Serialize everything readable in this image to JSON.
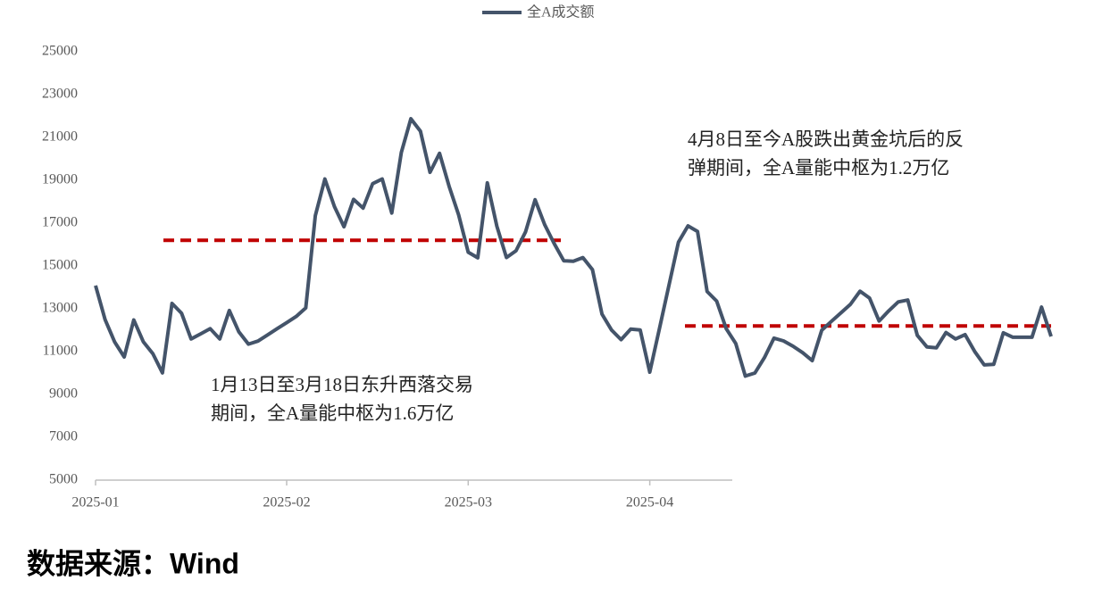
{
  "chart_data": {
    "type": "line",
    "categories": [
      "2025-01",
      null,
      null,
      null,
      null,
      null,
      null,
      null,
      null,
      null,
      null,
      null,
      null,
      null,
      null,
      null,
      null,
      null,
      null,
      null,
      "2025-02",
      null,
      null,
      null,
      null,
      null,
      null,
      null,
      null,
      null,
      null,
      null,
      null,
      null,
      null,
      null,
      null,
      null,
      null,
      "2025-03",
      null,
      null,
      null,
      null,
      null,
      null,
      null,
      null,
      null,
      null,
      null,
      null,
      null,
      null,
      null,
      null,
      null,
      null,
      "2025-04",
      null,
      null,
      null,
      null,
      null,
      null,
      null,
      null,
      null,
      null,
      null,
      null,
      null,
      null,
      null,
      null,
      null,
      null,
      null,
      null,
      null,
      null,
      null,
      null,
      null,
      null,
      null,
      null,
      null,
      null,
      null,
      null,
      null,
      null,
      null,
      null,
      null,
      null,
      null,
      null,
      null,
      null
    ],
    "series": [
      {
        "name": "全A成交额",
        "color": "#44546a",
        "values": [
          14083,
          12490,
          11450,
          10750,
          12480,
          11460,
          10900,
          10010,
          13250,
          12790,
          11590,
          11830,
          12070,
          11590,
          12920,
          11920,
          11350,
          11490,
          11780,
          12070,
          12350,
          12640,
          13040,
          17350,
          19060,
          17770,
          16830,
          18110,
          17700,
          18840,
          19060,
          17470,
          20300,
          21870,
          21290,
          19370,
          20260,
          18720,
          17380,
          15640,
          15380,
          18880,
          16850,
          15390,
          15710,
          16590,
          18090,
          16930,
          16040,
          15240,
          15220,
          15390,
          14830,
          12750,
          12010,
          11560,
          12050,
          12010,
          10040,
          12050,
          14080,
          16110,
          16870,
          16610,
          13810,
          13360,
          12070,
          11380,
          9860,
          10000,
          10720,
          11630,
          11500,
          11250,
          10950,
          10580,
          12000,
          12410,
          12810,
          13210,
          13820,
          13500,
          12430,
          12900,
          13320,
          13410,
          11760,
          11220,
          11180,
          11890,
          11590,
          11790,
          11010,
          10380,
          10410,
          11880,
          11670,
          11670,
          11670,
          13080,
          11710
        ]
      }
    ],
    "ylim": [
      5000,
      25000
    ],
    "yticks": [
      5000,
      7000,
      9000,
      11000,
      13000,
      15000,
      17000,
      19000,
      21000,
      23000,
      25000
    ],
    "grid": false,
    "legend": "top",
    "reference_lines": [
      {
        "value": 16200,
        "color": "#c00000"
      },
      {
        "value": 12200,
        "color": "#c00000"
      }
    ],
    "annotations": [
      "1月13日至3月18日东升西落交易",
      "期间，全A量能中枢为1.6万亿",
      "4月8日至今A股跌出黄金坑后的反",
      "弹期间，全A量能中枢为1.2万亿"
    ]
  },
  "source": "数据来源：Wind"
}
